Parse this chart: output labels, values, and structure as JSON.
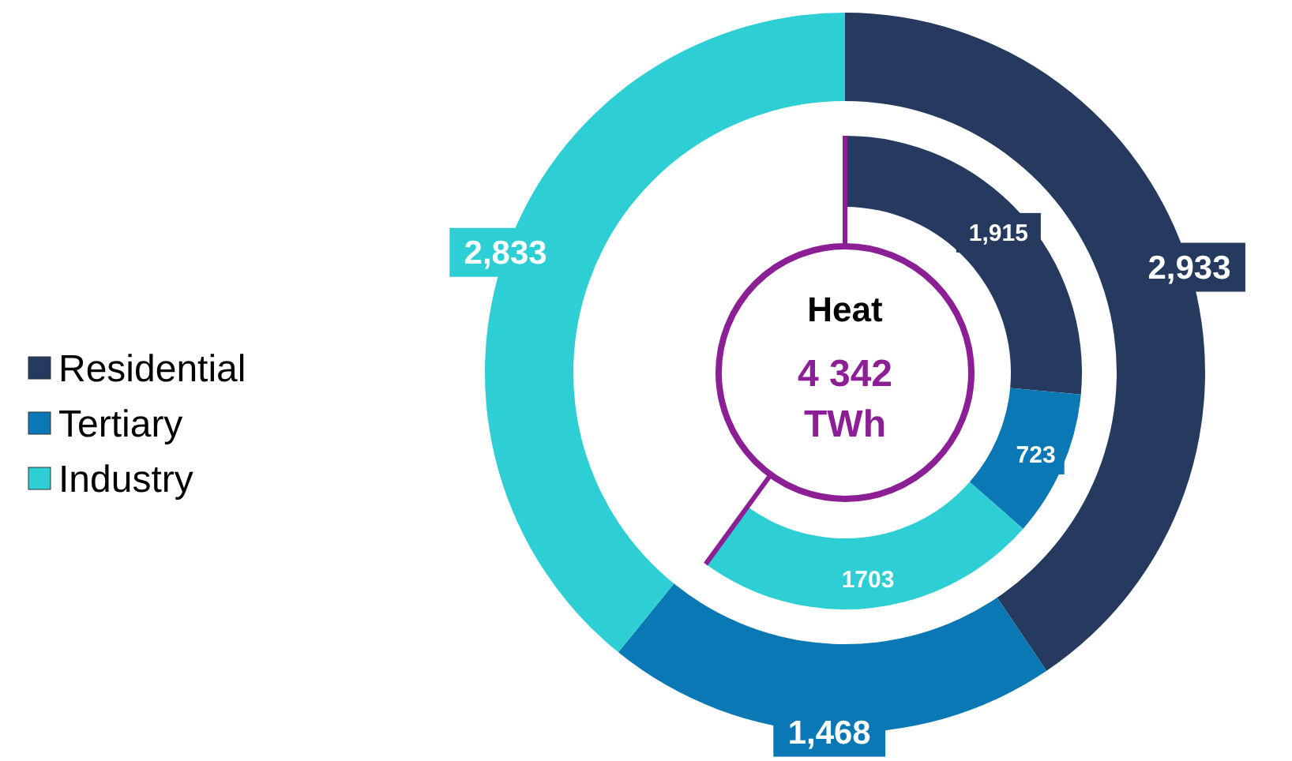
{
  "chart_data": {
    "type": "donut",
    "title": "Heat",
    "subtitle": "4 342 TWh",
    "categories": [
      "Residential",
      "Tertiary",
      "Industry"
    ],
    "colors": [
      "#253a5e",
      "#0a78b5",
      "#2ecfd4"
    ],
    "series": [
      {
        "values": [
          2933,
          1468,
          2833
        ],
        "value_labels": [
          "2,933",
          "1,468",
          "2,833"
        ]
      },
      {
        "values": [
          1915,
          723,
          1703
        ],
        "value_labels": [
          "1,915",
          "723",
          "1703"
        ]
      }
    ],
    "legend": "left"
  }
}
